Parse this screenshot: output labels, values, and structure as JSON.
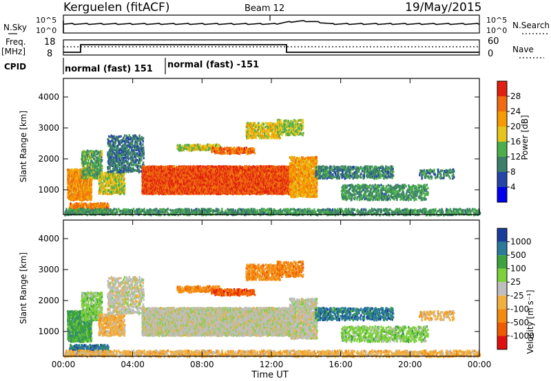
{
  "header": {
    "station": "Kerguelen (fitACF)",
    "beam": "Beam 12",
    "date": "19/May/2015"
  },
  "noise_panel": {
    "left_label": "N.Sky",
    "right_label": "N.Search",
    "left_ticks": [
      "10^5",
      "10^0"
    ],
    "right_ticks": [
      "10^5",
      "10^0"
    ]
  },
  "freq_panel": {
    "left_label_line1": "Freq.",
    "left_label_line2": "[MHz]",
    "right_label": "Nave",
    "left_ticks": [
      "18",
      "8"
    ],
    "right_ticks": [
      "60",
      "0"
    ]
  },
  "cpid": {
    "label": "CPID",
    "modes": [
      "normal (fast) 151",
      "normal (fast) -151"
    ]
  },
  "colors": {
    "power_scale": [
      "#0000ee",
      "#2546a6",
      "#3c7e6a",
      "#4bae4b",
      "#e6c41c",
      "#f59a00",
      "#ef6a10",
      "#e02010"
    ],
    "velocity_scale": [
      "#1a3d9c",
      "#2b7a9a",
      "#3da33d",
      "#7cd13a",
      "#bebebe",
      "#f0b040",
      "#f48a10",
      "#ee5a00",
      "#e01010"
    ]
  },
  "chart_data": [
    {
      "type": "heatmap",
      "title": "",
      "xlabel": "",
      "ylabel": "Slant Range [km]",
      "y_ticks": [
        "1000",
        "2000",
        "3000",
        "4000"
      ],
      "ylim": [
        200,
        4600
      ],
      "x_ticks": [
        "00:00",
        "04:00",
        "08:00",
        "12:00",
        "16:00",
        "20:00",
        "00:00"
      ],
      "colorbar": {
        "label": "Power [dB]",
        "ticks": [
          "4",
          "8",
          "12",
          "16",
          "20",
          "24",
          "28"
        ],
        "range": [
          0,
          32
        ]
      }
    },
    {
      "type": "heatmap",
      "title": "",
      "xlabel": "Time UT",
      "ylabel": "Slant Range [km]",
      "y_ticks": [
        "1000",
        "2000",
        "3000",
        "4000"
      ],
      "ylim": [
        200,
        4600
      ],
      "x_ticks": [
        "00:00",
        "04:00",
        "08:00",
        "12:00",
        "16:00",
        "20:00",
        "00:00"
      ],
      "colorbar": {
        "label": "Velocity [m s⁻¹]",
        "ticks": [
          "1000",
          "500",
          "100",
          "25",
          "-25",
          "-100",
          "-500",
          "-1000"
        ]
      }
    }
  ]
}
